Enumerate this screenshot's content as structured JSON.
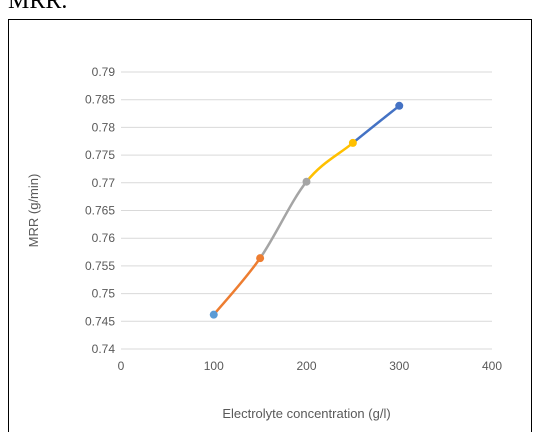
{
  "caption": "MRR.",
  "chart_data": {
    "type": "line",
    "title": "",
    "xlabel": "Electrolyte concentration (g/l)",
    "ylabel": "MRR (g/min)",
    "xlim": [
      0,
      400
    ],
    "ylim": [
      0.74,
      0.79
    ],
    "x_ticks": [
      "0",
      "100",
      "200",
      "300",
      "400"
    ],
    "y_ticks": [
      "0.74",
      "0.745",
      "0.75",
      "0.755",
      "0.76",
      "0.765",
      "0.77",
      "0.775",
      "0.78",
      "0.785",
      "0.79"
    ],
    "grid": "horizontal",
    "legend": "none",
    "smooth": true,
    "points": [
      {
        "x": 100,
        "y": 0.7462
      },
      {
        "x": 150,
        "y": 0.7564
      },
      {
        "x": 200,
        "y": 0.7702
      },
      {
        "x": 250,
        "y": 0.7772
      },
      {
        "x": 300,
        "y": 0.7839
      }
    ],
    "series": [
      {
        "x": [
          100,
          150
        ],
        "y": [
          0.7462,
          0.7564
        ],
        "color": "#ED7D31"
      },
      {
        "x": [
          150,
          200
        ],
        "y": [
          0.7564,
          0.7702
        ],
        "color": "#A5A5A5"
      },
      {
        "x": [
          200,
          250
        ],
        "y": [
          0.7702,
          0.7772
        ],
        "color": "#FFC000"
      },
      {
        "x": [
          250,
          300
        ],
        "y": [
          0.7772,
          0.7839
        ],
        "color": "#4472C4"
      }
    ],
    "marker_colors": [
      "#5B9BD5",
      "#ED7D31",
      "#A5A5A5",
      "#FFC000",
      "#4472C4"
    ]
  }
}
